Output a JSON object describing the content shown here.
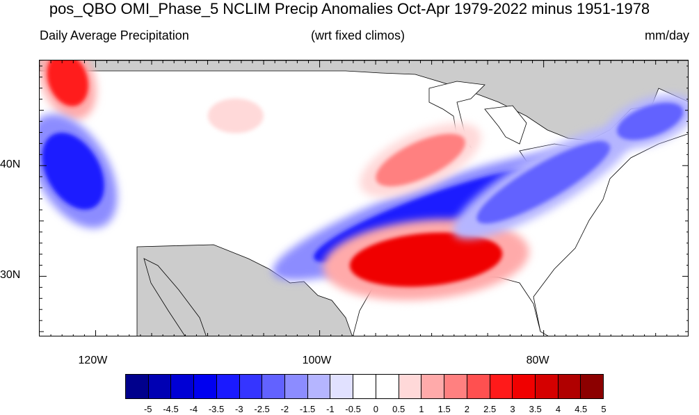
{
  "title": "pos_QBO OMI_Phase_5 NCLIM Precip Anomalies Oct-Apr 1979-2022 minus 1951-1978",
  "subtitle_left": "Daily Average Precipitation",
  "subtitle_center": "(wrt fixed climos)",
  "subtitle_right": "mm/day",
  "map": {
    "lon_range": [
      -125,
      -67
    ],
    "lat_range": [
      24.5,
      49.5
    ],
    "lat_ticks": [
      {
        "value": 40,
        "label": "40N"
      },
      {
        "value": 30,
        "label": "30N"
      }
    ],
    "lon_ticks": [
      {
        "value": -120,
        "label": "120W"
      },
      {
        "value": -100,
        "label": "100W"
      },
      {
        "value": -80,
        "label": "80W"
      }
    ],
    "colors": {
      "ocean_and_non_us_land": "#cccccc",
      "no_anomaly": "#ffffff",
      "outline": "#000000"
    },
    "anomaly_regions": [
      {
        "name": "pacific-northwest-wet",
        "center": [
          -122.5,
          47.8
        ],
        "value": 3.0
      },
      {
        "name": "northern-california-dry",
        "center": [
          -122.0,
          39.5
        ],
        "value": -3.0
      },
      {
        "name": "southern-plains-to-ohio-valley-dry",
        "center": [
          -90.0,
          35.5
        ],
        "value": -3.0
      },
      {
        "name": "gulf-coast-wet",
        "center": [
          -90.5,
          31.5
        ],
        "value": 3.5
      },
      {
        "name": "midwest-wet",
        "center": [
          -91.0,
          40.5
        ],
        "value": 2.0
      },
      {
        "name": "appalachian-dry",
        "center": [
          -80.0,
          38.5
        ],
        "value": -2.0
      },
      {
        "name": "new-england-dry",
        "center": [
          -70.5,
          44.0
        ],
        "value": -2.0
      },
      {
        "name": "northern-rockies-wet",
        "center": [
          -107.5,
          44.5
        ],
        "value": 1.0
      }
    ]
  },
  "colorbar": {
    "labels": [
      "-5",
      "-4.5",
      "-4",
      "-3.5",
      "-3",
      "-2.5",
      "-2",
      "-1.5",
      "-1",
      "-0.5",
      "0",
      "0.5",
      "1",
      "1.5",
      "2",
      "2.5",
      "3",
      "3.5",
      "4",
      "4.5",
      "5"
    ],
    "colors": [
      "#00008c",
      "#0000b3",
      "#0000d5",
      "#0000f0",
      "#1a1aff",
      "#3535ff",
      "#6262ff",
      "#8c8cff",
      "#b5b5ff",
      "#e1e1ff",
      "#ffffff",
      "#ffffff",
      "#ffd9d9",
      "#ffaaaa",
      "#ff8080",
      "#ff5050",
      "#ff1a1a",
      "#f00000",
      "#d50000",
      "#b00000",
      "#8c0000"
    ]
  }
}
